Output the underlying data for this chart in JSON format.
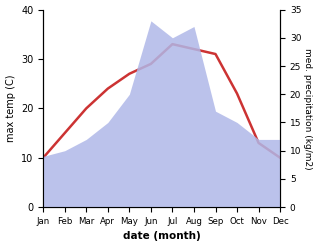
{
  "months": [
    "Jan",
    "Feb",
    "Mar",
    "Apr",
    "May",
    "Jun",
    "Jul",
    "Aug",
    "Sep",
    "Oct",
    "Nov",
    "Dec"
  ],
  "temperature": [
    10,
    15,
    20,
    24,
    27,
    29,
    33,
    32,
    31,
    23,
    13,
    10
  ],
  "precipitation": [
    9,
    10,
    12,
    15,
    20,
    33,
    30,
    32,
    17,
    15,
    12,
    12
  ],
  "temp_color": "#cc3333",
  "precip_color": "#b0b8e8",
  "temp_ylim": [
    0,
    40
  ],
  "precip_ylim": [
    0,
    35
  ],
  "temp_yticks": [
    0,
    10,
    20,
    30,
    40
  ],
  "precip_yticks": [
    0,
    5,
    10,
    15,
    20,
    25,
    30,
    35
  ],
  "xlabel": "date (month)",
  "ylabel_left": "max temp (C)",
  "ylabel_right": "med. precipitation (kg/m2)",
  "temp_linewidth": 1.8
}
